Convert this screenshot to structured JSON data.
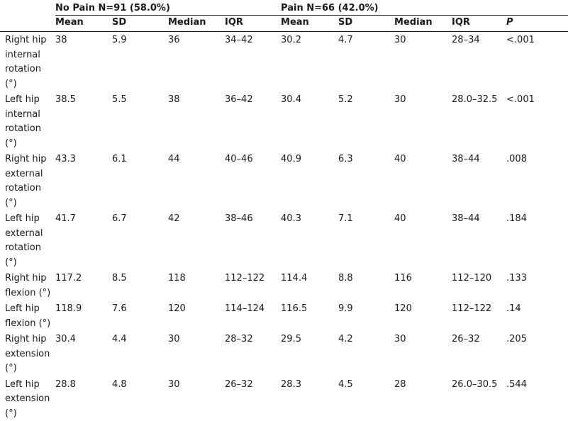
{
  "table": {
    "groups": {
      "no_pain": "No Pain N=91 (58.0%)",
      "pain": "Pain N=66 (42.0%)"
    },
    "columns": [
      "Mean",
      "SD",
      "Median",
      "IQR",
      "Mean",
      "SD",
      "Median",
      "IQR",
      "P"
    ],
    "rows": [
      {
        "label": "Right hip internal rotation (°)",
        "cells": [
          "38",
          "5.9",
          "36",
          "34–42",
          "30.2",
          "4.7",
          "30",
          "28–34",
          "<.001"
        ]
      },
      {
        "label": "Left hip internal rotation (°)",
        "cells": [
          "38.5",
          "5.5",
          "38",
          "36–42",
          "30.4",
          "5.2",
          "30",
          "28.0–32.5",
          "<.001"
        ]
      },
      {
        "label": "Right hip external rotation (°)",
        "cells": [
          "43.3",
          "6.1",
          "44",
          "40–46",
          "40.9",
          "6.3",
          "40",
          "38–44",
          ".008"
        ]
      },
      {
        "label": "Left hip external rotation (°)",
        "cells": [
          "41.7",
          "6.7",
          "42",
          "38–46",
          "40.3",
          "7.1",
          "40",
          "38–44",
          ".184"
        ]
      },
      {
        "label": "Right hip flexion (°)",
        "cells": [
          "117.2",
          "8.5",
          "118",
          "112–122",
          "114.4",
          "8.8",
          "116",
          "112–120",
          ".133"
        ]
      },
      {
        "label": "Left hip flexion (°)",
        "cells": [
          "118.9",
          "7.6",
          "120",
          "114–124",
          "116.5",
          "9.9",
          "120",
          "112–122",
          ".14"
        ]
      },
      {
        "label": "Right hip extension (°)",
        "cells": [
          "30.4",
          "4.4",
          "30",
          "28–32",
          "29.5",
          "4.2",
          "30",
          "26–32",
          ".205"
        ]
      },
      {
        "label": "Left hip extension (°)",
        "cells": [
          "28.8",
          "4.8",
          "30",
          "26–32",
          "28.3",
          "4.5",
          "28",
          "26.0–30.5",
          ".544"
        ]
      }
    ]
  }
}
